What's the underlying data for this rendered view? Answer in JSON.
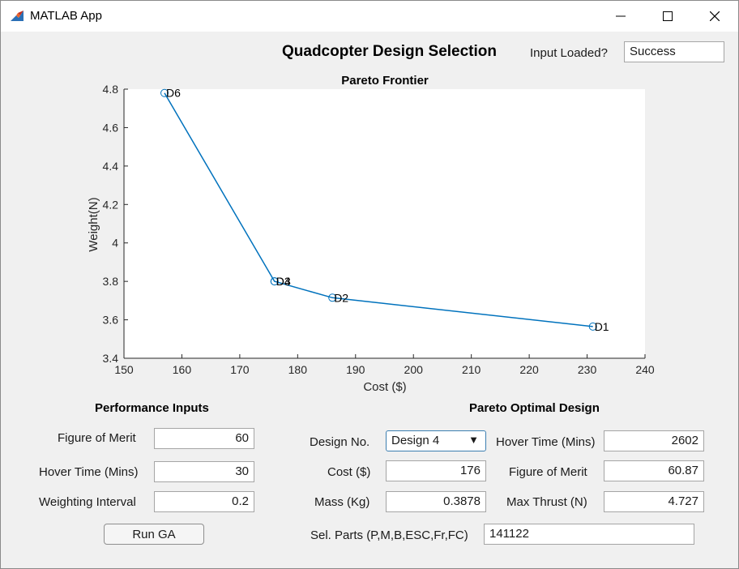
{
  "window": {
    "title": "MATLAB App",
    "minimize_icon": "minimize-icon",
    "maximize_icon": "maximize-icon",
    "close_icon": "close-icon",
    "app_icon": "matlab-logo-icon"
  },
  "header": {
    "title": "Quadcopter Design Selection",
    "input_loaded_label": "Input Loaded?",
    "input_loaded_value": "Success"
  },
  "chart_data": {
    "type": "line",
    "title": "Pareto Frontier",
    "xlabel": "Cost ($)",
    "ylabel": "Weight(N)",
    "xlim": [
      150,
      240
    ],
    "ylim": [
      3.4,
      4.8
    ],
    "xticks": [
      150,
      160,
      170,
      180,
      190,
      200,
      210,
      220,
      230,
      240
    ],
    "yticks": [
      3.4,
      3.6,
      3.8,
      4,
      4.2,
      4.4,
      4.6,
      4.8
    ],
    "grid": false,
    "line_color": "#0072bd",
    "marker": "circle",
    "points": [
      {
        "label": "D6",
        "x": 157,
        "y": 4.78
      },
      {
        "label": "D3",
        "x": 176,
        "y": 3.8
      },
      {
        "label": "D4",
        "x": 176,
        "y": 3.8
      },
      {
        "label": "D2",
        "x": 186,
        "y": 3.715
      },
      {
        "label": "D1",
        "x": 231,
        "y": 3.565
      }
    ]
  },
  "performance": {
    "heading": "Performance Inputs",
    "fom_label": "Figure of Merit",
    "fom_value": "60",
    "hover_label": "Hover Time (Mins)",
    "hover_value": "30",
    "weight_label": "Weighting Interval",
    "weight_value": "0.2",
    "run_button": "Run GA"
  },
  "pareto": {
    "heading": "Pareto Optimal Design",
    "design_no_label": "Design No.",
    "design_no_value": "Design 4",
    "cost_label": "Cost ($)",
    "cost_value": "176",
    "mass_label": "Mass (Kg)",
    "mass_value": "0.3878",
    "hover_label": "Hover Time (Mins)",
    "hover_value": "2602",
    "fom_label": "Figure of Merit",
    "fom_value": "60.87",
    "thrust_label": "Max Thrust (N)",
    "thrust_value": "4.727",
    "parts_label": "Sel. Parts (P,M,B,ESC,Fr,FC)",
    "parts_value": "141122"
  }
}
